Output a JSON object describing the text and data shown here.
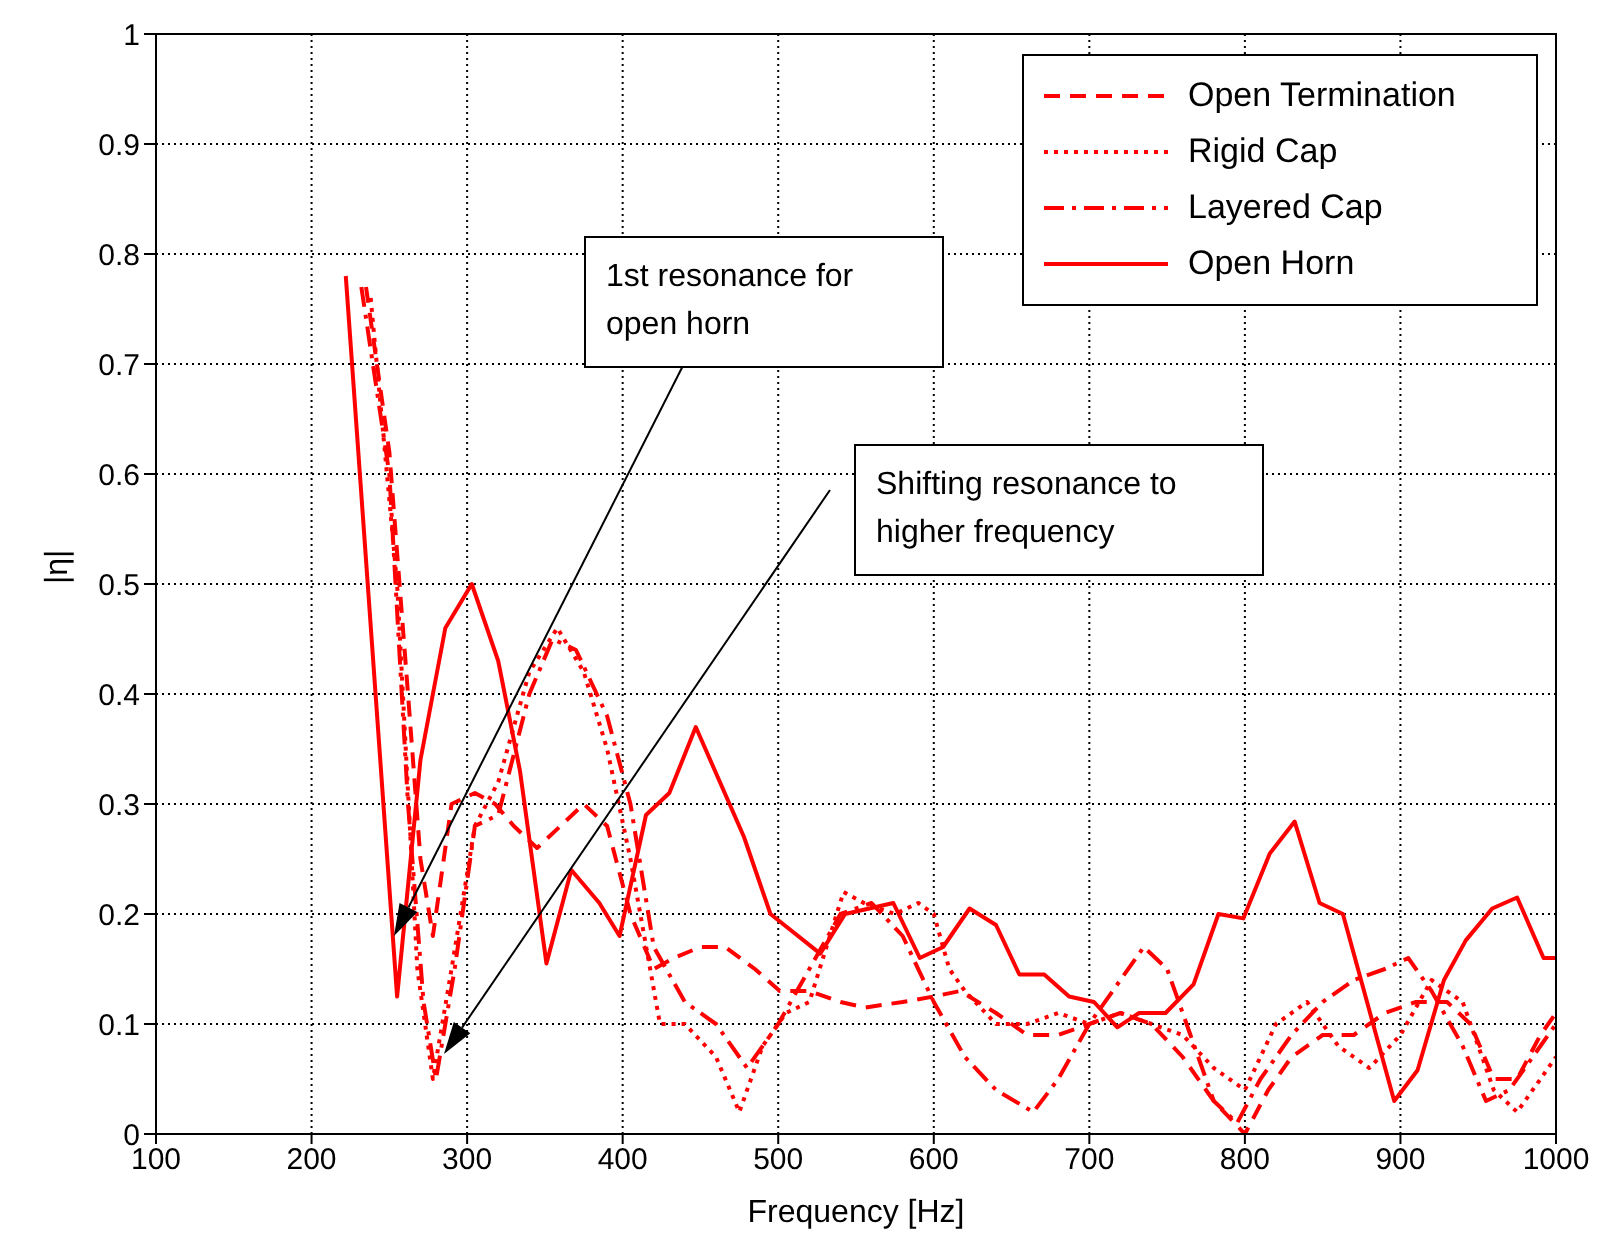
{
  "chart_data": {
    "type": "line",
    "xlabel": "Frequency [Hz]",
    "ylabel": "|η|",
    "xlim": [
      100,
      1000
    ],
    "ylim": [
      0,
      1
    ],
    "xticks": [
      100,
      200,
      300,
      400,
      500,
      600,
      700,
      800,
      900,
      1000
    ],
    "yticks": [
      0,
      0.1,
      0.2,
      0.3,
      0.4,
      0.5,
      0.6,
      0.7,
      0.8,
      0.9,
      1
    ],
    "grid": true,
    "legend": "top right",
    "annotations": [
      "1st resonance for open horn",
      "Shifting resonance to higher frequency"
    ],
    "series": [
      {
        "name": "Open Termination",
        "color": "#ff0000",
        "line_style": "dashed",
        "x": [
          235,
          250,
          262,
          270,
          278,
          290,
          305,
          318,
          330,
          345,
          360,
          375,
          390,
          405,
          420,
          433,
          450,
          466,
          485,
          501,
          520,
          540,
          556,
          580,
          600,
          617,
          640,
          660,
          680,
          700,
          720,
          740,
          760,
          780,
          800,
          815,
          830,
          850,
          870,
          890,
          910,
          930,
          945,
          960,
          975,
          990,
          1000
        ],
        "values": [
          0.77,
          0.62,
          0.4,
          0.25,
          0.18,
          0.3,
          0.31,
          0.3,
          0.28,
          0.26,
          0.28,
          0.3,
          0.28,
          0.2,
          0.15,
          0.16,
          0.17,
          0.17,
          0.15,
          0.13,
          0.13,
          0.12,
          0.115,
          0.12,
          0.125,
          0.13,
          0.11,
          0.09,
          0.09,
          0.1,
          0.11,
          0.1,
          0.07,
          0.03,
          0,
          0.04,
          0.07,
          0.09,
          0.09,
          0.11,
          0.12,
          0.12,
          0.1,
          0.05,
          0.05,
          0.09,
          0.11
        ]
      },
      {
        "name": "Rigid Cap",
        "color": "#ff0000",
        "line_style": "dotted",
        "x": [
          238,
          255,
          268,
          278,
          290,
          305,
          320,
          340,
          358,
          375,
          390,
          405,
          424,
          440,
          460,
          475,
          490,
          505,
          520,
          542,
          555,
          575,
          590,
          600,
          610,
          620,
          640,
          660,
          680,
          700,
          720,
          740,
          760,
          780,
          800,
          820,
          840,
          860,
          880,
          900,
          920,
          940,
          960,
          975,
          990,
          1000
        ],
        "values": [
          0.76,
          0.5,
          0.15,
          0.05,
          0.15,
          0.28,
          0.32,
          0.42,
          0.46,
          0.42,
          0.35,
          0.25,
          0.1,
          0.1,
          0.07,
          0.02,
          0.08,
          0.11,
          0.12,
          0.22,
          0.21,
          0.2,
          0.21,
          0.2,
          0.15,
          0.13,
          0.1,
          0.1,
          0.11,
          0.1,
          0.11,
          0.1,
          0.09,
          0.06,
          0.04,
          0.1,
          0.12,
          0.08,
          0.06,
          0.09,
          0.14,
          0.12,
          0.04,
          0.02,
          0.05,
          0.07
        ]
      },
      {
        "name": "Layered Cap",
        "color": "#ff0000",
        "line_style": "dashdot",
        "x": [
          232,
          250,
          262,
          272,
          280,
          292,
          305,
          320,
          340,
          355,
          370,
          390,
          405,
          420,
          440,
          460,
          480,
          500,
          520,
          540,
          560,
          580,
          600,
          620,
          640,
          664,
          680,
          700,
          720,
          735,
          750,
          765,
          780,
          795,
          810,
          830,
          850,
          870,
          890,
          905,
          920,
          940,
          955,
          970,
          990,
          1000
        ],
        "values": [
          0.77,
          0.6,
          0.3,
          0.12,
          0.05,
          0.15,
          0.28,
          0.29,
          0.4,
          0.45,
          0.44,
          0.38,
          0.3,
          0.17,
          0.12,
          0.1,
          0.06,
          0.1,
          0.15,
          0.2,
          0.21,
          0.18,
          0.12,
          0.07,
          0.04,
          0.02,
          0.05,
          0.1,
          0.14,
          0.17,
          0.15,
          0.09,
          0.03,
          0.01,
          0.05,
          0.09,
          0.12,
          0.14,
          0.15,
          0.16,
          0.13,
          0.08,
          0.03,
          0.04,
          0.08,
          0.1
        ]
      },
      {
        "name": "Open Horn",
        "color": "#ff0000",
        "line_style": "solid",
        "x": [
          222,
          255,
          270,
          286,
          303,
          320,
          334,
          351,
          367,
          385,
          398,
          415,
          430,
          447,
          478,
          495,
          527,
          543,
          574,
          591,
          606,
          623,
          640,
          655,
          671,
          687,
          703,
          718,
          732,
          749,
          767,
          783,
          799,
          816,
          832,
          848,
          863,
          896,
          911,
          928,
          942,
          959,
          975,
          992,
          1000
        ],
        "values": [
          0.78,
          0.125,
          0.34,
          0.46,
          0.5,
          0.43,
          0.33,
          0.155,
          0.24,
          0.21,
          0.18,
          0.29,
          0.31,
          0.37,
          0.27,
          0.2,
          0.164,
          0.2,
          0.21,
          0.16,
          0.17,
          0.205,
          0.19,
          0.145,
          0.145,
          0.125,
          0.12,
          0.097,
          0.11,
          0.11,
          0.136,
          0.2,
          0.196,
          0.255,
          0.284,
          0.21,
          0.2,
          0.03,
          0.058,
          0.14,
          0.176,
          0.205,
          0.215,
          0.16,
          0.16
        ]
      }
    ]
  }
}
